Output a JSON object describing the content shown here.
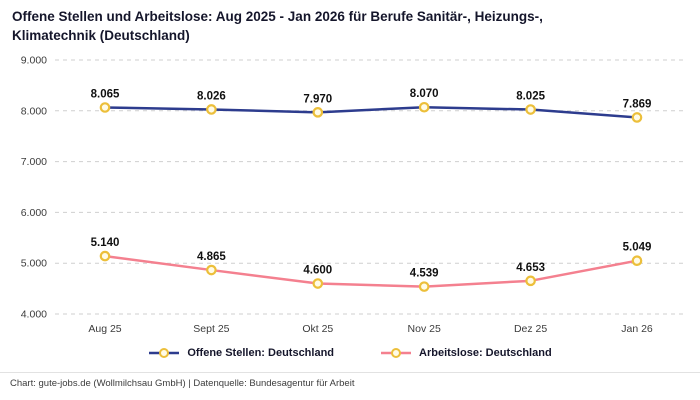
{
  "title_lines": [
    "Offene Stellen und Arbeitslose: Aug 2025 - Jan 2026 für Berufe Sanitär-, Heizungs-,",
    "Klimatechnik (Deutschland)"
  ],
  "footer": "Chart: gute-jobs.de (Wollmilchsau GmbH) | Datenquelle: Bundesagentur für Arbeit",
  "colors": {
    "series_open": "#2d3c8e",
    "series_unemployed": "#f4808f",
    "marker_fill": "#fffbe6",
    "marker_stroke": "#ecbf3a",
    "grid": "#cfcfcf",
    "label_text": "#111111",
    "axis_text": "#3c3c3c"
  },
  "chart_data": {
    "type": "line",
    "title": "Offene Stellen und Arbeitslose: Aug 2025 - Jan 2026 für Berufe Sanitär-, Heizungs-, Klimatechnik (Deutschland)",
    "categories": [
      "Aug 25",
      "Sept 25",
      "Okt 25",
      "Nov 25",
      "Dez 25",
      "Jan 26"
    ],
    "series": [
      {
        "name": "Offene Stellen: Deutschland",
        "values": [
          8065,
          8026,
          7970,
          8070,
          8025,
          7869
        ],
        "labels": [
          "8.065",
          "8.026",
          "7.970",
          "8.070",
          "8.025",
          "7.869"
        ],
        "color": "#2d3c8e"
      },
      {
        "name": "Arbeitslose: Deutschland",
        "values": [
          5140,
          4865,
          4600,
          4539,
          4653,
          5049
        ],
        "labels": [
          "5.140",
          "4.865",
          "4.600",
          "4.539",
          "4.653",
          "5.049"
        ],
        "color": "#f4808f"
      }
    ],
    "ylim": [
      4000,
      9000
    ],
    "yticks": [
      9000,
      8000,
      7000,
      6000,
      5000,
      4000
    ],
    "ytick_labels": [
      "9.000",
      "8.000",
      "7.000",
      "6.000",
      "5.000",
      "4.000"
    ],
    "grid": true,
    "legend_position": "bottom"
  }
}
